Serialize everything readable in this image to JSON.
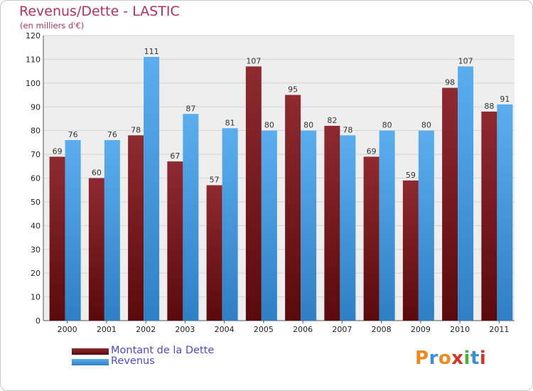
{
  "title": "Revenus/Dette - LASTIC",
  "subtitle": "(en milliers d'€)",
  "colors": {
    "title": "#b4325a",
    "dette": "#7b1a1e",
    "revenus": "#4aa3e8",
    "legend_text": "#4b49d6",
    "grid": "#d5d5d5",
    "plot_bg": "#eeeeee"
  },
  "legend": {
    "dette_label": "Montant de la Dette",
    "revenus_label": "Revenus"
  },
  "logo": {
    "letters": [
      "P",
      "r",
      "o",
      "x",
      "i",
      "t",
      "i"
    ],
    "colors": [
      "#f08a1c",
      "#3a8fd8",
      "#f08a1c",
      "#d8322c",
      "#4caf3a",
      "#3a8fd8",
      "#d8322c"
    ]
  },
  "chart_data": {
    "type": "bar",
    "title": "Revenus/Dette - LASTIC",
    "xlabel": "",
    "ylabel": "(en milliers d'€)",
    "ylim": [
      0,
      120
    ],
    "yticks": [
      0,
      10,
      20,
      30,
      40,
      50,
      60,
      70,
      80,
      90,
      100,
      110,
      120
    ],
    "grid": true,
    "legend_position": "bottom-left",
    "categories": [
      "2000",
      "2001",
      "2002",
      "2003",
      "2004",
      "2005",
      "2006",
      "2007",
      "2008",
      "2009",
      "2010",
      "2011"
    ],
    "series": [
      {
        "name": "Montant de la Dette",
        "key": "dette",
        "values": [
          69,
          60,
          78,
          67,
          57,
          107,
          95,
          82,
          69,
          59,
          98,
          88
        ]
      },
      {
        "name": "Revenus",
        "key": "revenus",
        "values": [
          76,
          76,
          111,
          87,
          81,
          80,
          80,
          78,
          80,
          80,
          107,
          91
        ]
      }
    ]
  }
}
